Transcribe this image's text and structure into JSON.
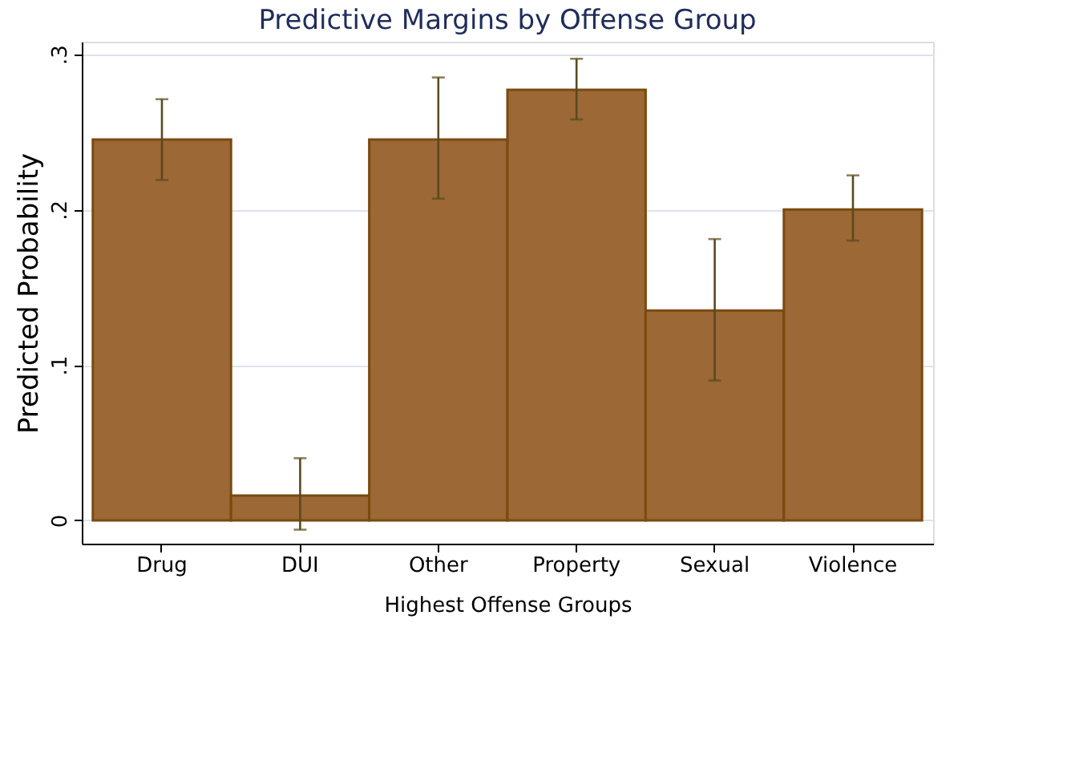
{
  "chart_data": {
    "type": "bar",
    "title": "Predictive Margins by Offense Group",
    "xlabel": "Highest Offense Groups",
    "ylabel": "Predicted Probability",
    "categories": [
      "Drug",
      "DUI",
      "Other",
      "Property",
      "Sexual",
      "Violence"
    ],
    "values": [
      0.245,
      0.016,
      0.245,
      0.277,
      0.135,
      0.2
    ],
    "errors": [
      [
        0.219,
        0.271
      ],
      [
        -0.006,
        0.04
      ],
      [
        0.207,
        0.285
      ],
      [
        0.258,
        0.297
      ],
      [
        0.09,
        0.181
      ],
      [
        0.18,
        0.222
      ]
    ],
    "color": "#9b6836",
    "ylim": [
      -0.015,
      0.308
    ],
    "yticks": [
      {
        "value": 0,
        "label": "0"
      },
      {
        "value": 0.1,
        "label": ".1"
      },
      {
        "value": 0.2,
        "label": ".2"
      },
      {
        "value": 0.3,
        "label": ".3"
      }
    ],
    "grid": "y"
  }
}
